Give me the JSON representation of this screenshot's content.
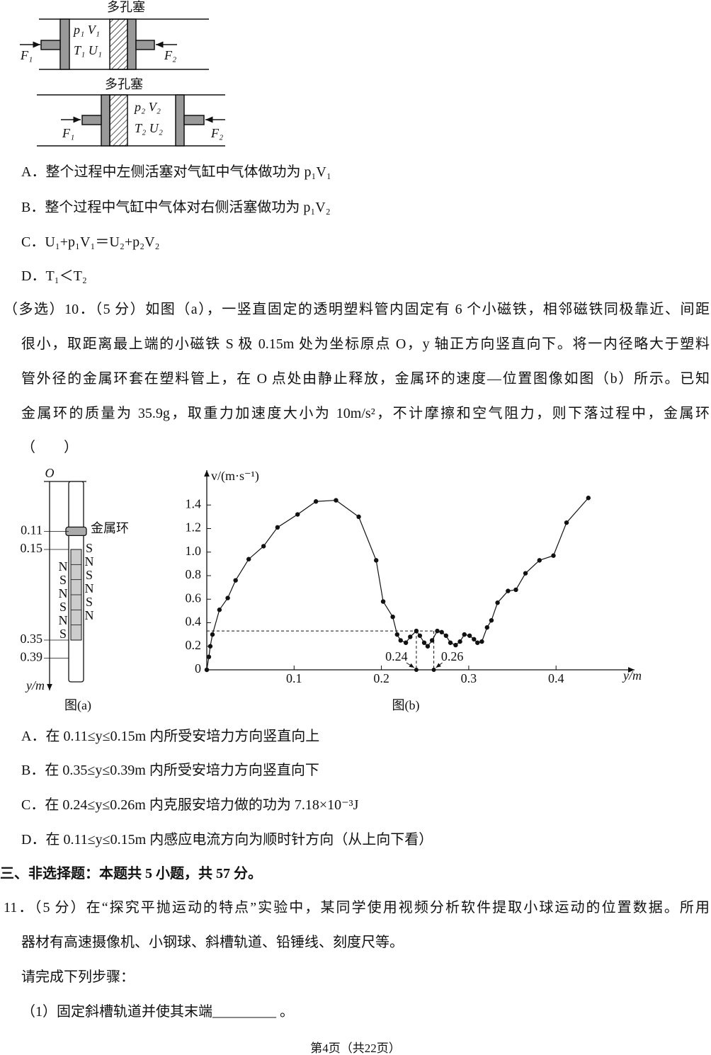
{
  "figure_pistons": {
    "top": {
      "plug_label": "多孔塞",
      "state_line1": "p₁ V₁",
      "state_line2": "T₁ U₁",
      "left_force": "F₁",
      "right_force": "F₂"
    },
    "bottom": {
      "plug_label": "多孔塞",
      "state_line1": "p₂ V₂",
      "state_line2": "T₂ U₂",
      "left_force": "F₁",
      "right_force": "F₂"
    }
  },
  "q9_options": [
    "A．整个过程中左侧活塞对气缸中气体做功为 p₁V₁",
    "B．整个过程中气缸中气体对右侧活塞做功为 p₁V₂",
    "C．U₁+p₁V₁＝U₂+p₂V₂",
    "D．T₁＜T₂"
  ],
  "q10": {
    "lines": [
      "（多选）10．（5 分）如图（a），一竖直固定的透明塑料管内固定有 6 个小磁铁，相邻磁铁同极靠近、间距",
      "很小，取距离最上端的小磁铁 S 极 0.15m 处为坐标原点 O，y 轴正方向竖直向下。将一内径略大于塑料",
      "管外径的金属环套在塑料管上，在 O 点处由静止释放，金属环的速度—位置图像如图（b）所示。已知",
      "金属环的质量为 35.9g，取重力加速度大小为 10m/s²，不计摩擦和空气阻力，则下落过程中，金属环",
      "（　　）"
    ],
    "options": [
      "A．在 0.11≤y≤0.15m 内所受安培力方向竖直向上",
      "B．在 0.35≤y≤0.39m 内所受安培力方向竖直向下",
      "C．在 0.24≤y≤0.26m 内克服安培力做的功为 7.18×10⁻³J",
      "D．在 0.11≤y≤0.15m 内感应电流方向为顺时针方向（从上向下看）"
    ]
  },
  "figure_a": {
    "origin_label": "O",
    "positions": [
      0.11,
      0.15,
      0.35,
      0.39
    ],
    "axis_label": "y/m",
    "ring_label": "金属环",
    "left_poles": [
      "N",
      "S",
      "N",
      "S",
      "N",
      "S"
    ],
    "right_poles": [
      "S",
      "N",
      "S",
      "N",
      "S",
      "N"
    ],
    "caption": "图(a)"
  },
  "chart_data": {
    "type": "line",
    "y_axis_label": "v/(m·s⁻¹)",
    "x_axis_label": "y/m",
    "caption": "图(b)",
    "xlim": [
      0,
      0.485
    ],
    "ylim": [
      0,
      1.66
    ],
    "xticks": [
      0.1,
      0.2,
      0.3,
      0.4
    ],
    "yticks": [
      0,
      0.2,
      0.4,
      0.6,
      0.8,
      {
        "value": 1,
        "label": "1.0"
      },
      1.2,
      1.4
    ],
    "x": [
      0,
      0.0024,
      0.004,
      0.0065,
      0.0145,
      0.024,
      0.033,
      0.048,
      0.065,
      0.081,
      0.104,
      0.125,
      0.148,
      0.174,
      0.194,
      0.202,
      0.213,
      0.218,
      0.222,
      0.228,
      0.233,
      0.24,
      0.244,
      0.249,
      0.253,
      0.258,
      0.264,
      0.269,
      0.274,
      0.279,
      0.285,
      0.29,
      0.295,
      0.301,
      0.306,
      0.31,
      0.315,
      0.321,
      0.326,
      0.333,
      0.345,
      0.354,
      0.365,
      0.381,
      0.397,
      0.412,
      0.437
    ],
    "values": [
      0,
      0.11,
      0.2,
      0.3,
      0.51,
      0.61,
      0.76,
      0.94,
      1.05,
      1.21,
      1.32,
      1.43,
      1.44,
      1.3,
      0.93,
      0.58,
      0.45,
      0.3,
      0.25,
      0.23,
      0.28,
      0.33,
      0.29,
      0.23,
      0.2,
      0.25,
      0.33,
      0.32,
      0.29,
      0.23,
      0.21,
      0.24,
      0.3,
      0.29,
      0.26,
      0.23,
      0.24,
      0.36,
      0.42,
      0.57,
      0.67,
      0.68,
      0.82,
      0.93,
      0.97,
      1.25,
      1.46
    ],
    "color": "#111111",
    "marked_x": [
      0.24,
      0.26
    ],
    "dashed_level": 0.33
  },
  "section3_heading": "三、非选择题：本题共 5 小题，共 57 分。",
  "q11": {
    "lines": [
      "11．（5 分）在“探究平抛运动的特点”实验中，某同学使用视频分析软件提取小球运动的位置数据。所用",
      "器材有高速摄像机、小钢球、斜槽轨道、铅锤线、刻度尺等。",
      "请完成下列步骤：",
      "（1）固定斜槽轨道并使其末端_________ 。"
    ]
  },
  "footer": "第4页（共22页）"
}
